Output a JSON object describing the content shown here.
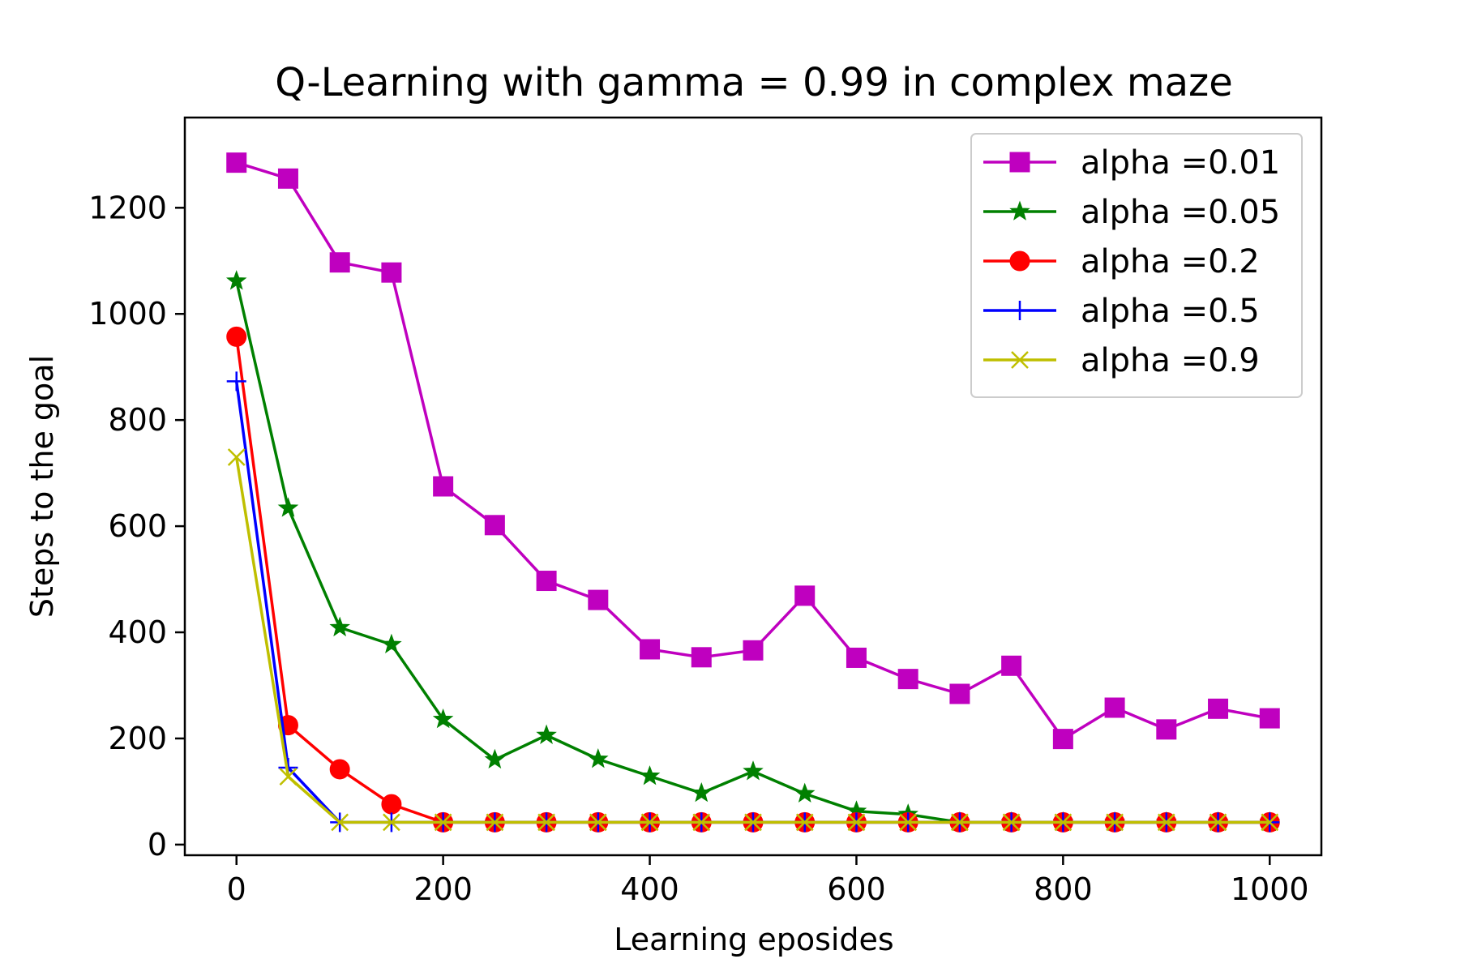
{
  "chart_data": {
    "type": "line",
    "title": "Q-Learning with gamma = 0.99 in complex maze",
    "xlabel": "Learning eposides",
    "ylabel": "Steps to the goal",
    "xlim": [
      -50,
      1050
    ],
    "ylim": [
      -20,
      1370
    ],
    "xticks": [
      0,
      200,
      400,
      600,
      800,
      1000
    ],
    "yticks": [
      0,
      200,
      400,
      600,
      800,
      1000,
      1200
    ],
    "x": [
      0,
      50,
      100,
      150,
      200,
      250,
      300,
      350,
      400,
      450,
      500,
      550,
      600,
      650,
      700,
      750,
      800,
      850,
      900,
      950,
      1000
    ],
    "grid": false,
    "legend_position": "top-right",
    "series": [
      {
        "name": "alpha =0.01",
        "color": "#bf00bf",
        "marker": "square",
        "values": [
          1285,
          1255,
          1097,
          1078,
          675,
          602,
          497,
          461,
          368,
          353,
          366,
          469,
          352,
          312,
          284,
          337,
          199,
          258,
          217,
          256,
          238
        ]
      },
      {
        "name": "alpha =0.05",
        "color": "#008000",
        "marker": "star",
        "values": [
          1062,
          634,
          409,
          377,
          236,
          160,
          206,
          161,
          129,
          97,
          138,
          96,
          63,
          57,
          42,
          42,
          42,
          42,
          42,
          42,
          42
        ]
      },
      {
        "name": "alpha =0.2",
        "color": "#ff0000",
        "marker": "circle",
        "values": [
          957,
          225,
          142,
          76,
          42,
          42,
          42,
          42,
          42,
          42,
          42,
          42,
          42,
          42,
          42,
          42,
          42,
          42,
          42,
          42,
          42
        ]
      },
      {
        "name": "alpha =0.5",
        "color": "#0000ff",
        "marker": "plus",
        "values": [
          873,
          145,
          42,
          42,
          42,
          42,
          42,
          42,
          42,
          42,
          42,
          42,
          42,
          42,
          42,
          42,
          42,
          42,
          42,
          42,
          42
        ]
      },
      {
        "name": "alpha =0.9",
        "color": "#bfbf00",
        "marker": "x",
        "values": [
          730,
          128,
          42,
          42,
          42,
          42,
          42,
          42,
          42,
          42,
          42,
          42,
          42,
          42,
          42,
          42,
          42,
          42,
          42,
          42,
          42
        ]
      }
    ]
  }
}
